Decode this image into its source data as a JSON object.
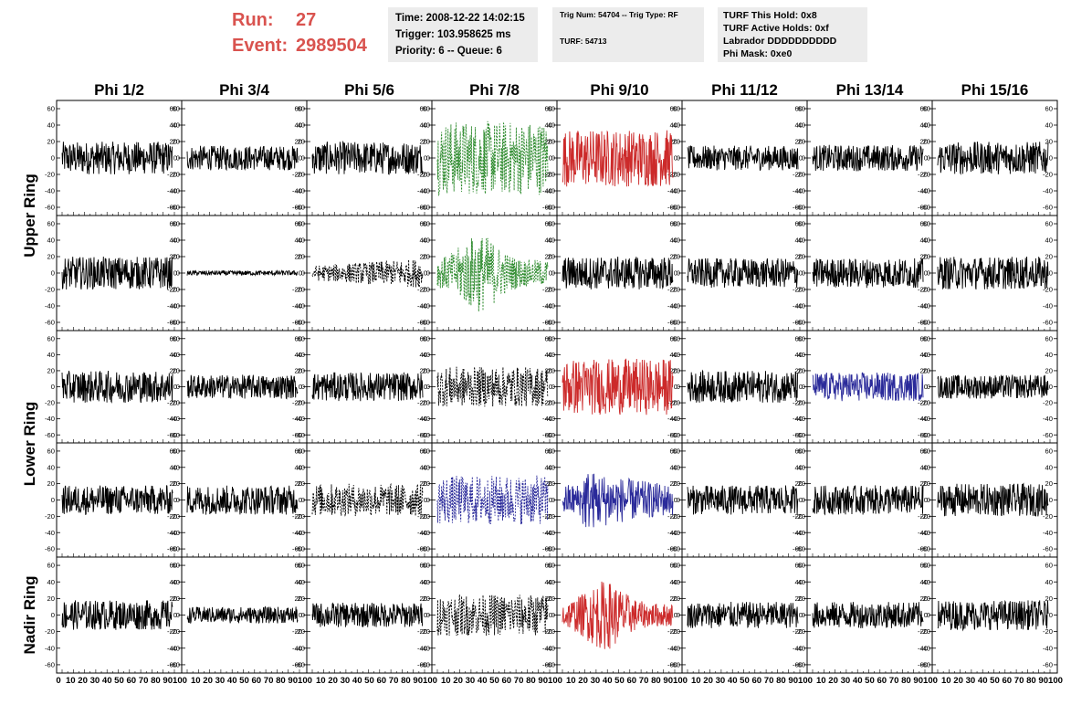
{
  "header": {
    "run_label": "Run:",
    "run_value": "27",
    "event_label": "Event:",
    "event_value": "2989504",
    "time": "Time: 2008-12-22 14:02:15",
    "trigger": "Trigger: 103.958625 ms",
    "priority": "Priority: 6 -- Queue: 6",
    "trig_num": "Trig Num: 54704 -- Trig Type: RF",
    "turf": "TURF: 54713",
    "turf_this_hold": "TURF This Hold: 0x8",
    "turf_active_holds": "TURF Active Holds: 0xf",
    "labrador": "Labrador DDDDDDDDDD",
    "phi_mask": "Phi Mask: 0xe0"
  },
  "colors": {
    "header_text": "#d9534f",
    "trace_default": "#000000",
    "trace_green": "#2e8b2e",
    "trace_red": "#cc2a2a",
    "trace_blue": "#2a2a9a",
    "info_box_bg": "#ececec"
  },
  "chart_data": {
    "type": "line",
    "columns": [
      "Phi 1/2",
      "Phi 3/4",
      "Phi 5/6",
      "Phi 7/8",
      "Phi 9/10",
      "Phi 11/12",
      "Phi 13/14",
      "Phi 15/16"
    ],
    "ring_labels": [
      "Upper Ring",
      "Lower Ring",
      "Nadir Ring"
    ],
    "ylim": [
      -70,
      70
    ],
    "yticks": [
      -60,
      -40,
      -20,
      0,
      20,
      40,
      60
    ],
    "xlim": [
      0,
      100
    ],
    "xticks": [
      0,
      10,
      20,
      30,
      40,
      50,
      60,
      70,
      80,
      90,
      100
    ],
    "panels": [
      [
        {
          "style": "solid",
          "color": "black",
          "amp": 20,
          "env": "flat"
        },
        {
          "style": "solid",
          "color": "black",
          "amp": 15,
          "env": "flat"
        },
        {
          "style": "solid",
          "color": "black",
          "amp": 20,
          "env": "flat"
        },
        {
          "style": "dotted",
          "color": "green",
          "amp": 45,
          "env": "flat"
        },
        {
          "style": "solid",
          "color": "red",
          "amp": 35,
          "env": "flat"
        },
        {
          "style": "solid",
          "color": "black",
          "amp": 15,
          "env": "flat"
        },
        {
          "style": "solid",
          "color": "black",
          "amp": 16,
          "env": "flat"
        },
        {
          "style": "solid",
          "color": "black",
          "amp": 20,
          "env": "flat"
        }
      ],
      [
        {
          "style": "solid",
          "color": "black",
          "amp": 20,
          "env": "flat"
        },
        {
          "style": "solid",
          "color": "black",
          "amp": 3,
          "env": "flat"
        },
        {
          "style": "dotted",
          "color": "black",
          "amp": 18,
          "env": "ramp"
        },
        {
          "style": "dotted",
          "color": "green",
          "amp": 40,
          "env": "bump"
        },
        {
          "style": "solid",
          "color": "black",
          "amp": 20,
          "env": "flat"
        },
        {
          "style": "solid",
          "color": "black",
          "amp": 18,
          "env": "flat"
        },
        {
          "style": "solid",
          "color": "black",
          "amp": 18,
          "env": "flat"
        },
        {
          "style": "solid",
          "color": "black",
          "amp": 20,
          "env": "flat"
        }
      ],
      [
        {
          "style": "solid",
          "color": "black",
          "amp": 20,
          "env": "flat"
        },
        {
          "style": "solid",
          "color": "black",
          "amp": 15,
          "env": "flat"
        },
        {
          "style": "solid",
          "color": "black",
          "amp": 18,
          "env": "flat"
        },
        {
          "style": "dotted",
          "color": "black",
          "amp": 25,
          "env": "flat"
        },
        {
          "style": "solid",
          "color": "red",
          "amp": 35,
          "env": "flat"
        },
        {
          "style": "solid",
          "color": "black",
          "amp": 20,
          "env": "flat"
        },
        {
          "style": "solid",
          "color": "blue",
          "amp": 18,
          "env": "flat"
        },
        {
          "style": "solid",
          "color": "black",
          "amp": 15,
          "env": "flat"
        }
      ],
      [
        {
          "style": "solid",
          "color": "black",
          "amp": 18,
          "env": "flat"
        },
        {
          "style": "solid",
          "color": "black",
          "amp": 18,
          "env": "flat"
        },
        {
          "style": "dotted",
          "color": "black",
          "amp": 20,
          "env": "flat"
        },
        {
          "style": "dotted",
          "color": "blue",
          "amp": 30,
          "env": "flat"
        },
        {
          "style": "solid",
          "color": "blue",
          "amp": 28,
          "env": "decay"
        },
        {
          "style": "solid",
          "color": "black",
          "amp": 18,
          "env": "flat"
        },
        {
          "style": "solid",
          "color": "black",
          "amp": 18,
          "env": "flat"
        },
        {
          "style": "solid",
          "color": "black",
          "amp": 20,
          "env": "flat"
        }
      ],
      [
        {
          "style": "solid",
          "color": "black",
          "amp": 18,
          "env": "flat"
        },
        {
          "style": "solid",
          "color": "black",
          "amp": 10,
          "env": "flat"
        },
        {
          "style": "solid",
          "color": "black",
          "amp": 15,
          "env": "flat"
        },
        {
          "style": "dotted",
          "color": "black",
          "amp": 25,
          "env": "flat"
        },
        {
          "style": "solid",
          "color": "red",
          "amp": 35,
          "env": "bump"
        },
        {
          "style": "solid",
          "color": "black",
          "amp": 16,
          "env": "flat"
        },
        {
          "style": "solid",
          "color": "black",
          "amp": 16,
          "env": "flat"
        },
        {
          "style": "solid",
          "color": "black",
          "amp": 18,
          "env": "flat"
        }
      ]
    ]
  }
}
